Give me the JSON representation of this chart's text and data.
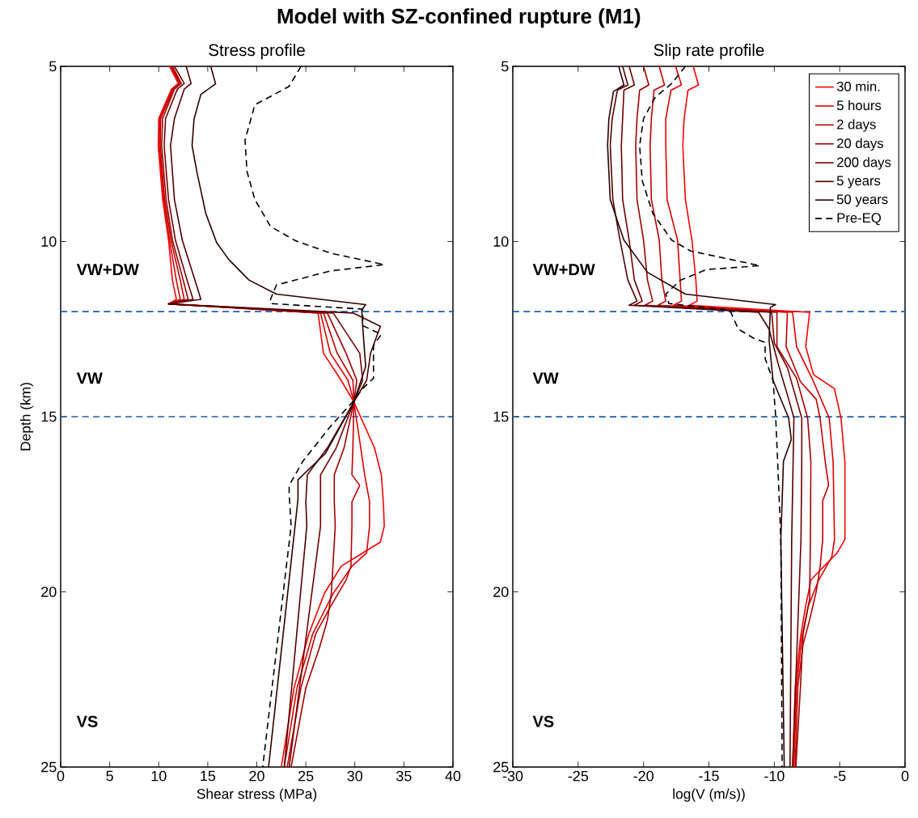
{
  "chart_data": [
    {
      "type": "line",
      "title": "Stress profile",
      "xlabel": "Shear stress (MPa)",
      "ylabel": "Depth (km)",
      "xlim": [
        0,
        40
      ],
      "xticks": [
        0,
        5,
        10,
        15,
        20,
        25,
        30,
        35,
        40
      ],
      "ylim": [
        25,
        5
      ],
      "yticks": [
        5,
        10,
        15,
        20,
        25
      ],
      "series": [
        {
          "color": "#ff0000",
          "line_style": "solid",
          "x": [
            11.1,
            12.0,
            11.3,
            10.0,
            9.95,
            10.4,
            11.0,
            11.4,
            11.8,
            11.0,
            26.25,
            26.8,
            28.6,
            29.9,
            32.0,
            32.7,
            32.9,
            33.0,
            32.6,
            30.8,
            28.6,
            26.9,
            25.3,
            23.8,
            22.5
          ],
          "values": [
            5.0,
            5.49,
            5.65,
            6.49,
            7.26,
            8.8,
            9.96,
            11.11,
            11.65,
            11.78,
            12.04,
            13.19,
            13.96,
            14.58,
            15.89,
            16.66,
            17.43,
            18.12,
            18.58,
            18.89,
            19.27,
            20.04,
            21.2,
            22.74,
            25
          ]
        },
        {
          "color": "#e00000",
          "line_style": "solid",
          "x": [
            11.2,
            12.1,
            11.4,
            10.1,
            10.05,
            10.5,
            11.1,
            11.8,
            12.2,
            11.0,
            26.5,
            27.5,
            29.3,
            29.9,
            30.6,
            31.0,
            31.5,
            31.5,
            31.2,
            29.7,
            27.8,
            25.7,
            24.1,
            22.8
          ],
          "values": [
            5.0,
            5.49,
            5.65,
            6.49,
            7.26,
            8.8,
            9.96,
            11.11,
            11.65,
            11.78,
            12.04,
            13.19,
            13.96,
            14.58,
            15.89,
            16.66,
            17.43,
            18.12,
            18.89,
            19.27,
            20.04,
            21.2,
            22.74,
            25
          ]
        },
        {
          "color": "#c00000",
          "line_style": "solid",
          "x": [
            11.3,
            12.2,
            11.5,
            10.2,
            10.15,
            10.6,
            11.25,
            12.2,
            12.6,
            11.0,
            26.8,
            28.2,
            29.8,
            29.9,
            29.8,
            29.7,
            30.5,
            29.7,
            29.7,
            29.6,
            29.1,
            27.5,
            26.0,
            24.5,
            23.1
          ],
          "values": [
            5.0,
            5.49,
            5.65,
            6.49,
            7.26,
            8.8,
            9.96,
            11.11,
            11.65,
            11.78,
            12.04,
            13.19,
            13.96,
            14.58,
            15.89,
            16.66,
            16.96,
            17.43,
            18.12,
            19.27,
            19.66,
            20.43,
            21.2,
            22.74,
            25
          ]
        },
        {
          "color": "#a00000",
          "line_style": "solid",
          "x": [
            11.4,
            12.3,
            11.6,
            10.4,
            10.3,
            10.75,
            11.4,
            12.5,
            13.0,
            11.0,
            27.2,
            29.1,
            30.2,
            29.9,
            28.9,
            27.9,
            27.9,
            28.0,
            27.6,
            27.2,
            26.4,
            25.0,
            23.5
          ],
          "values": [
            5.0,
            5.49,
            5.65,
            6.49,
            7.26,
            8.8,
            9.96,
            11.11,
            11.65,
            11.78,
            12.04,
            13.19,
            13.96,
            14.58,
            15.89,
            16.66,
            17.43,
            18.12,
            20.04,
            20.81,
            21.58,
            22.74,
            25
          ]
        },
        {
          "color": "#700000",
          "line_style": "solid",
          "x": [
            11.6,
            12.6,
            11.9,
            10.7,
            10.55,
            11.0,
            11.7,
            12.9,
            13.5,
            11.0,
            27.8,
            30.5,
            30.8,
            29.9,
            28.1,
            26.5,
            26.5,
            23.3
          ],
          "values": [
            5.0,
            5.49,
            5.65,
            6.49,
            7.26,
            8.8,
            9.96,
            11.11,
            11.65,
            11.78,
            12.04,
            13.19,
            13.96,
            14.58,
            15.89,
            16.66,
            18.12,
            25
          ]
        },
        {
          "color": "#500000",
          "line_style": "solid",
          "x": [
            12.8,
            13.3,
            12.6,
            11.6,
            11.2,
            11.6,
            12.4,
            13.7,
            14.3,
            11.0,
            29.8,
            32.6,
            31.6,
            31.2,
            29.9,
            27.2,
            25.15,
            25.0,
            25.1,
            22.8
          ],
          "values": [
            5.0,
            5.49,
            5.65,
            6.49,
            7.26,
            8.8,
            9.96,
            11.11,
            11.65,
            11.78,
            12.04,
            12.42,
            13.19,
            13.96,
            14.58,
            15.89,
            16.66,
            17.43,
            18.12,
            25
          ]
        },
        {
          "color": "#2a0000",
          "line_style": "solid",
          "x": [
            15.3,
            15.8,
            14.3,
            13.6,
            13.4,
            13.9,
            14.8,
            15.9,
            17.1,
            19.2,
            22.0,
            31.1,
            30.7,
            30.8,
            31.1,
            29.9,
            27.0,
            24.2,
            24.2,
            23.9,
            21.2
          ],
          "values": [
            5.0,
            5.5,
            5.8,
            6.5,
            7.26,
            8.03,
            9.2,
            10.03,
            10.5,
            11.1,
            11.5,
            11.8,
            11.95,
            12.42,
            13.57,
            14.58,
            16.05,
            16.8,
            17.36,
            18.12,
            25
          ]
        },
        {
          "color": "#000000",
          "line_style": "dashed",
          "x": [
            24.5,
            23.3,
            19.8,
            18.8,
            19.0,
            19.8,
            21.4,
            23.9,
            27.5,
            33.0,
            27.5,
            22.0,
            21.4,
            21.4,
            30.8,
            30.8,
            32.7,
            31.9,
            31.9,
            30.8,
            29.7,
            27.5,
            24.7,
            23.3,
            23.3,
            23.5,
            20.6
          ],
          "values": [
            5.0,
            5.57,
            6.1,
            7.1,
            8.0,
            8.8,
            9.57,
            9.97,
            10.33,
            10.66,
            10.84,
            11.24,
            11.65,
            11.77,
            11.93,
            12.4,
            12.65,
            12.97,
            13.9,
            14.2,
            14.6,
            15.28,
            16.27,
            16.96,
            17.2,
            18.12,
            25
          ]
        }
      ],
      "ref_lines": [
        {
          "axis": "y",
          "value": 12,
          "color": "#1f5fa8",
          "line_style": "dashed"
        },
        {
          "axis": "y",
          "value": 15,
          "color": "#1f5fa8",
          "line_style": "dashed"
        }
      ],
      "annotations": [
        "Model with SZ-confined rupture (M1)",
        "VW+DW",
        "VW",
        "VS"
      ]
    },
    {
      "type": "line",
      "title": "Slip rate profile",
      "xlabel": "log(V (m/s))",
      "xlim": [
        -30,
        0
      ],
      "xticks": [
        -30,
        -25,
        -20,
        -15,
        -10,
        -5,
        0
      ],
      "ylim": [
        25,
        5
      ],
      "yticks": [
        5,
        10,
        15,
        20,
        25
      ],
      "legend": "top right",
      "series": [
        {
          "name": "30 min.",
          "color": "#ff0000",
          "line_style": "solid",
          "x": [
            -16.2,
            -15.8,
            -16.6,
            -16.9,
            -17.0,
            -16.8,
            -16.3,
            -16.0,
            -15.9,
            -16.5,
            -7.3,
            -7.6,
            -7.0,
            -5.4,
            -4.9,
            -4.6,
            -4.6,
            -5.2,
            -6.2,
            -7.2,
            -7.6,
            -8.0,
            -8.4,
            -8.6
          ],
          "values": [
            5.0,
            5.53,
            5.68,
            6.49,
            7.26,
            8.8,
            9.96,
            11.1,
            11.7,
            11.82,
            12.02,
            13.0,
            13.8,
            14.2,
            15.04,
            16.3,
            18.5,
            18.89,
            19.27,
            19.66,
            20.4,
            21.3,
            22.7,
            25
          ]
        },
        {
          "name": "5 hours",
          "color": "#e00000",
          "line_style": "solid",
          "x": [
            -17.55,
            -17.1,
            -17.9,
            -18.3,
            -18.3,
            -18.2,
            -17.4,
            -17.2,
            -17.1,
            -17.7,
            -8.6,
            -8.3,
            -7.0,
            -5.8,
            -5.5,
            -5.4,
            -5.6,
            -6.6,
            -7.4,
            -7.9,
            -8.3,
            -8.5
          ],
          "values": [
            5.0,
            5.53,
            5.68,
            6.49,
            7.26,
            8.8,
            9.96,
            11.1,
            11.7,
            11.82,
            12.02,
            13.0,
            14.0,
            15.04,
            16.3,
            18.5,
            19.0,
            19.66,
            20.4,
            21.3,
            22.7,
            25
          ]
        },
        {
          "name": "2 days",
          "color": "#c00000",
          "line_style": "solid",
          "x": [
            -18.8,
            -18.4,
            -19.2,
            -19.4,
            -19.5,
            -19.4,
            -18.8,
            -18.6,
            -18.3,
            -18.9,
            -9.0,
            -9.1,
            -8.0,
            -6.8,
            -6.5,
            -6.1,
            -5.85,
            -6.3,
            -6.3,
            -6.5,
            -6.8,
            -7.3,
            -7.8,
            -8.2,
            -8.4
          ],
          "values": [
            5.0,
            5.53,
            5.68,
            6.49,
            7.26,
            8.8,
            9.96,
            11.1,
            11.7,
            11.82,
            12.02,
            13.0,
            14.0,
            14.5,
            15.04,
            16.3,
            16.96,
            17.4,
            18.5,
            19.3,
            20.0,
            20.8,
            21.5,
            22.7,
            25
          ]
        },
        {
          "name": "20 days",
          "color": "#a00000",
          "line_style": "solid",
          "x": [
            -20.0,
            -19.6,
            -20.3,
            -20.5,
            -20.6,
            -20.5,
            -20.0,
            -19.7,
            -19.3,
            -19.9,
            -9.8,
            -9.8,
            -8.3,
            -7.45,
            -7.2,
            -7.24,
            -7.3,
            -7.8,
            -8.0,
            -8.35
          ],
          "values": [
            5.0,
            5.53,
            5.68,
            6.49,
            7.26,
            8.8,
            9.96,
            11.1,
            11.7,
            11.82,
            12.02,
            13.0,
            13.9,
            15.04,
            16.3,
            18.5,
            20.2,
            21.2,
            22.7,
            25
          ]
        },
        {
          "name": "200 days",
          "color": "#700000",
          "line_style": "solid",
          "x": [
            -21.1,
            -20.7,
            -21.5,
            -21.6,
            -21.7,
            -21.6,
            -21.1,
            -20.7,
            -20.1,
            -20.7,
            -10.2,
            -10.0,
            -9.0,
            -7.9,
            -7.9,
            -7.96,
            -8.6
          ],
          "values": [
            5.0,
            5.53,
            5.68,
            6.49,
            7.26,
            8.8,
            9.96,
            11.1,
            11.7,
            11.82,
            12.02,
            12.9,
            13.6,
            15.04,
            16.3,
            18.5,
            25
          ]
        },
        {
          "name": "5 years",
          "color": "#500000",
          "line_style": "solid",
          "x": [
            -21.6,
            -21.2,
            -22.0,
            -22.4,
            -22.55,
            -22.35,
            -21.8,
            -21.2,
            -20.5,
            -21.1,
            -11.2,
            -10.4,
            -9.7,
            -8.9,
            -8.5,
            -8.67,
            -8.8
          ],
          "values": [
            5.0,
            5.53,
            5.68,
            6.49,
            7.26,
            8.8,
            9.96,
            11.1,
            11.7,
            11.82,
            12.02,
            12.5,
            13.5,
            14.5,
            15.04,
            18.5,
            25
          ]
        },
        {
          "name": "50 years",
          "color": "#2a0000",
          "line_style": "solid",
          "x": [
            -21.9,
            -21.5,
            -22.3,
            -22.65,
            -22.75,
            -22.55,
            -21.5,
            -19.7,
            -16.8,
            -9.9,
            -10.3,
            -10.4,
            -10.1,
            -8.9,
            -8.7,
            -9.3,
            -9.5,
            -9.24
          ],
          "values": [
            5.0,
            5.53,
            5.72,
            6.49,
            7.26,
            8.8,
            9.96,
            10.88,
            11.5,
            11.8,
            11.88,
            12.81,
            13.96,
            15.04,
            15.65,
            16.27,
            18.5,
            25
          ]
        },
        {
          "name": "Pre-EQ",
          "color": "#000000",
          "line_style": "dashed",
          "x": [
            -16.8,
            -17.85,
            -19.1,
            -20.0,
            -20.3,
            -20.1,
            -19.3,
            -17.85,
            -16.4,
            -11.1,
            -15.2,
            -17.2,
            -18.3,
            -18.06,
            -13.4,
            -12.75,
            -11.53,
            -10.7,
            -10.7,
            -10.1,
            -9.9,
            -9.7,
            -9.5,
            -9.4
          ],
          "values": [
            5.0,
            5.49,
            5.88,
            6.49,
            7.26,
            8.26,
            9.19,
            9.96,
            10.27,
            10.69,
            10.8,
            11.11,
            11.5,
            11.77,
            11.96,
            12.5,
            12.77,
            12.88,
            13.34,
            13.96,
            14.96,
            16.66,
            18.5,
            25
          ]
        }
      ],
      "ref_lines": [
        {
          "axis": "y",
          "value": 12,
          "color": "#1f5fa8",
          "line_style": "dashed"
        },
        {
          "axis": "y",
          "value": 15,
          "color": "#1f5fa8",
          "line_style": "dashed"
        }
      ],
      "annotations": [
        "VW+DW",
        "VW",
        "VS"
      ]
    }
  ]
}
